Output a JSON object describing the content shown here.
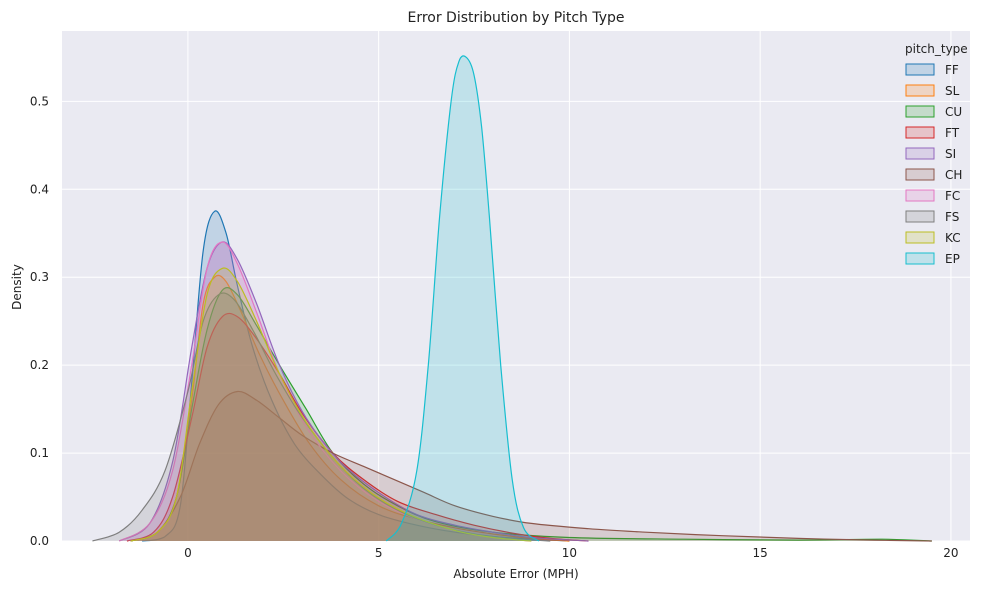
{
  "chart_data": {
    "type": "area",
    "title": "Error Distribution by Pitch Type",
    "xlabel": "Absolute Error (MPH)",
    "ylabel": "Density",
    "xlim": [
      -3.3,
      20.5
    ],
    "ylim": [
      0,
      0.58
    ],
    "xticks": [
      0,
      5,
      10,
      15,
      20
    ],
    "yticks": [
      0.0,
      0.1,
      0.2,
      0.3,
      0.4,
      0.5
    ],
    "ytick_labels": [
      "0.0",
      "0.1",
      "0.2",
      "0.3",
      "0.4",
      "0.5"
    ],
    "grid": true,
    "background": "#eaeaf2",
    "legend": {
      "title": "pitch_type",
      "placement": "top-right"
    },
    "series": [
      {
        "name": "FF",
        "color": "#1f77b4",
        "x": [
          -1.2,
          -0.6,
          -0.2,
          0.1,
          0.4,
          0.7,
          1.0,
          1.3,
          1.7,
          2.2,
          2.8,
          3.5,
          4.2,
          5.0,
          6.0,
          7.0,
          8.0,
          9.0,
          10.0
        ],
        "y": [
          0.0,
          0.005,
          0.04,
          0.18,
          0.33,
          0.375,
          0.35,
          0.29,
          0.22,
          0.16,
          0.11,
          0.075,
          0.048,
          0.03,
          0.018,
          0.01,
          0.005,
          0.002,
          0.0
        ]
      },
      {
        "name": "SL",
        "color": "#ff7f0e",
        "x": [
          -1.5,
          -0.8,
          -0.3,
          0.1,
          0.4,
          0.7,
          1.0,
          1.4,
          1.9,
          2.5,
          3.2,
          4.0,
          5.0,
          6.0,
          7.0,
          8.0,
          9.0,
          10.0
        ],
        "y": [
          0.0,
          0.01,
          0.05,
          0.16,
          0.27,
          0.3,
          0.295,
          0.26,
          0.21,
          0.16,
          0.11,
          0.07,
          0.04,
          0.025,
          0.015,
          0.008,
          0.003,
          0.0
        ]
      },
      {
        "name": "CU",
        "color": "#2ca02c",
        "x": [
          -1.5,
          -0.8,
          -0.3,
          0.1,
          0.5,
          0.9,
          1.3,
          1.8,
          2.4,
          3.1,
          3.8,
          4.6,
          5.5,
          6.5,
          8.0,
          10.0,
          13.0,
          16.0,
          18.2,
          19.5
        ],
        "y": [
          0.0,
          0.01,
          0.05,
          0.15,
          0.24,
          0.285,
          0.28,
          0.245,
          0.2,
          0.15,
          0.1,
          0.065,
          0.04,
          0.022,
          0.01,
          0.004,
          0.002,
          0.001,
          0.002,
          0.0
        ]
      },
      {
        "name": "FT",
        "color": "#d62728",
        "x": [
          -1.6,
          -0.9,
          -0.4,
          0.1,
          0.5,
          0.9,
          1.3,
          1.8,
          2.4,
          3.0,
          3.8,
          4.6,
          5.5,
          6.5,
          7.5,
          8.5,
          9.5,
          10.5
        ],
        "y": [
          0.0,
          0.01,
          0.05,
          0.14,
          0.22,
          0.255,
          0.255,
          0.23,
          0.19,
          0.145,
          0.1,
          0.07,
          0.045,
          0.03,
          0.018,
          0.009,
          0.003,
          0.0
        ]
      },
      {
        "name": "SI",
        "color": "#9467bd",
        "x": [
          -1.8,
          -1.0,
          -0.4,
          0.1,
          0.5,
          0.9,
          1.3,
          1.8,
          2.4,
          3.1,
          4.0,
          5.0,
          6.0,
          7.0,
          8.0,
          9.0,
          10.5
        ],
        "y": [
          0.0,
          0.02,
          0.09,
          0.22,
          0.31,
          0.34,
          0.32,
          0.27,
          0.2,
          0.14,
          0.09,
          0.055,
          0.03,
          0.018,
          0.01,
          0.004,
          0.0
        ]
      },
      {
        "name": "CH",
        "color": "#8c564b",
        "x": [
          -1.5,
          -0.8,
          -0.2,
          0.3,
          0.8,
          1.3,
          1.8,
          2.4,
          3.0,
          3.8,
          4.6,
          5.4,
          6.2,
          7.0,
          8.0,
          9.0,
          10.5,
          12.0,
          14.0,
          16.0,
          18.0,
          19.5
        ],
        "y": [
          0.0,
          0.01,
          0.05,
          0.11,
          0.155,
          0.17,
          0.16,
          0.14,
          0.12,
          0.1,
          0.085,
          0.07,
          0.055,
          0.04,
          0.028,
          0.02,
          0.014,
          0.01,
          0.006,
          0.003,
          0.001,
          0.0
        ]
      },
      {
        "name": "FC",
        "color": "#e377c2",
        "x": [
          -1.8,
          -1.0,
          -0.4,
          0.1,
          0.5,
          0.9,
          1.3,
          1.8,
          2.4,
          3.1,
          4.0,
          5.0,
          6.0,
          7.0,
          8.0,
          9.0
        ],
        "y": [
          0.0,
          0.02,
          0.08,
          0.2,
          0.31,
          0.34,
          0.315,
          0.26,
          0.19,
          0.13,
          0.08,
          0.045,
          0.025,
          0.012,
          0.004,
          0.0
        ]
      },
      {
        "name": "FS",
        "color": "#7f7f7f",
        "x": [
          -2.5,
          -1.8,
          -1.2,
          -0.6,
          0.0,
          0.4,
          0.8,
          1.2,
          1.7,
          2.3,
          3.0,
          3.8,
          4.6,
          5.5,
          6.5,
          7.5,
          8.5,
          9.5
        ],
        "y": [
          0.0,
          0.01,
          0.035,
          0.08,
          0.17,
          0.25,
          0.28,
          0.275,
          0.24,
          0.19,
          0.14,
          0.095,
          0.06,
          0.035,
          0.018,
          0.008,
          0.003,
          0.0
        ]
      },
      {
        "name": "KC",
        "color": "#bcbd22",
        "x": [
          -1.5,
          -0.8,
          -0.3,
          0.1,
          0.5,
          0.9,
          1.3,
          1.8,
          2.4,
          3.1,
          3.9,
          4.8,
          5.8,
          7.0,
          8.0,
          9.0
        ],
        "y": [
          0.0,
          0.01,
          0.05,
          0.17,
          0.28,
          0.31,
          0.295,
          0.25,
          0.19,
          0.135,
          0.09,
          0.055,
          0.03,
          0.012,
          0.004,
          0.0
        ]
      },
      {
        "name": "EP",
        "color": "#17becf",
        "x": [
          5.2,
          5.6,
          6.0,
          6.3,
          6.6,
          6.9,
          7.1,
          7.3,
          7.5,
          7.7,
          7.9,
          8.2,
          8.5,
          8.8,
          9.2
        ],
        "y": [
          0.0,
          0.02,
          0.08,
          0.2,
          0.37,
          0.5,
          0.545,
          0.55,
          0.53,
          0.47,
          0.37,
          0.2,
          0.07,
          0.015,
          0.0
        ]
      }
    ]
  }
}
